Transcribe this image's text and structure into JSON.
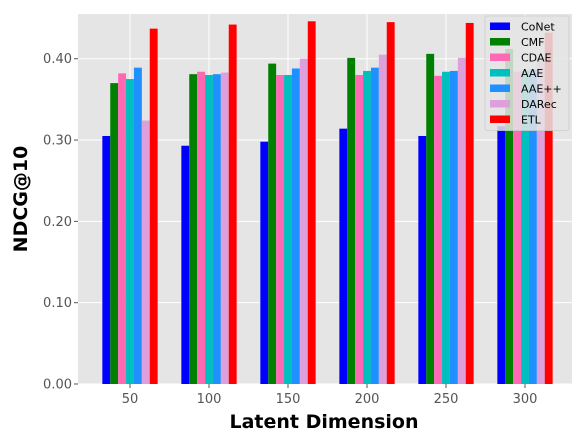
{
  "chart_data": {
    "type": "bar",
    "title": "",
    "xlabel": "Latent Dimension",
    "ylabel": "NDCG@10",
    "categories": [
      "50",
      "100",
      "150",
      "200",
      "250",
      "300"
    ],
    "ylim": [
      0,
      0.455
    ],
    "yticks": [
      "0.00",
      "0.10",
      "0.20",
      "0.30",
      "0.40"
    ],
    "ytick_values": [
      0,
      0.1,
      0.2,
      0.3,
      0.4
    ],
    "grid": true,
    "legend_position": "top-right",
    "series": [
      {
        "name": "CoNet",
        "color": "#0000ff",
        "values": [
          0.305,
          0.293,
          0.298,
          0.314,
          0.305,
          0.317
        ]
      },
      {
        "name": "CMF",
        "color": "#008000",
        "values": [
          0.37,
          0.381,
          0.394,
          0.401,
          0.406,
          0.412
        ]
      },
      {
        "name": "CDAE",
        "color": "#ff69b4",
        "values": [
          0.382,
          0.384,
          0.38,
          0.38,
          0.379,
          0.384
        ]
      },
      {
        "name": "AAE",
        "color": "#00bfbf",
        "values": [
          0.375,
          0.38,
          0.38,
          0.385,
          0.384,
          0.385
        ]
      },
      {
        "name": "AAE++",
        "color": "#1e90ff",
        "values": [
          0.389,
          0.381,
          0.388,
          0.389,
          0.385,
          0.387
        ]
      },
      {
        "name": "DARec",
        "color": "#dda0dd",
        "values": [
          0.324,
          0.383,
          0.4,
          0.405,
          0.401,
          0.4
        ]
      },
      {
        "name": "ETL",
        "color": "#ff0000",
        "values": [
          0.437,
          0.442,
          0.446,
          0.445,
          0.444,
          0.432
        ]
      }
    ]
  }
}
